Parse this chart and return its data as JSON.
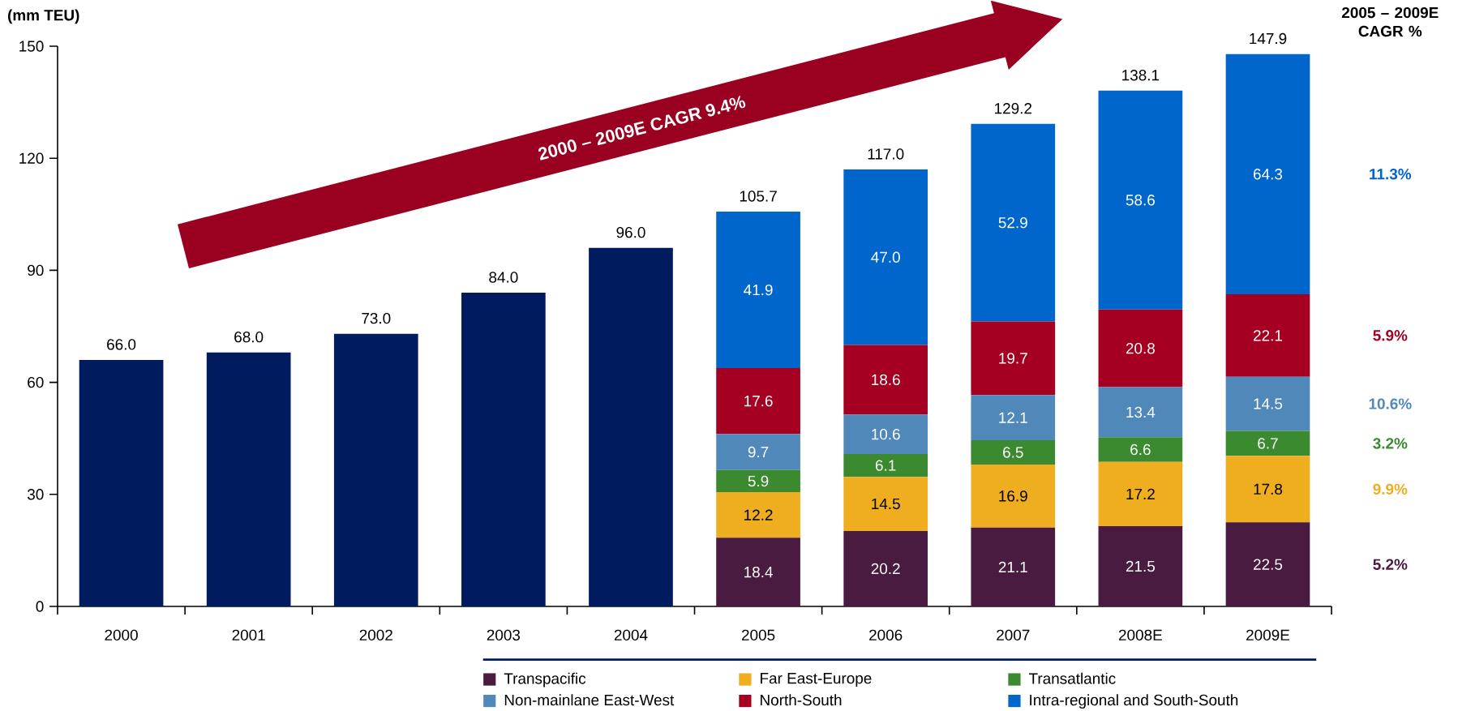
{
  "chart_data": {
    "type": "bar",
    "stacked": true,
    "ylabel": "(mm TEU)",
    "categories": [
      "2000",
      "2001",
      "2002",
      "2003",
      "2004",
      "2005",
      "2006",
      "2007",
      "2008E",
      "2009E"
    ],
    "series": [
      {
        "color": "#001b5e",
        "values": [
          66,
          68,
          73,
          84,
          96,
          null,
          null,
          null,
          null,
          null
        ]
      },
      {
        "name": "Transpacific",
        "color": "#4a1b40",
        "values": [
          null,
          null,
          null,
          null,
          null,
          18.4,
          20.2,
          21.1,
          21.5,
          22.5
        ],
        "value_labels": [
          null,
          null,
          null,
          null,
          null,
          "18.4",
          "20.2",
          "21.1",
          "21.5",
          "22.5"
        ]
      },
      {
        "name": "Far East-Europe",
        "color": "#efad20",
        "values": [
          null,
          null,
          null,
          null,
          null,
          12.2,
          14.5,
          16.9,
          17.2,
          17.8
        ],
        "value_labels": [
          null,
          null,
          null,
          null,
          null,
          "12.2",
          "14.5",
          "16.9",
          "17.2",
          "17.8"
        ]
      },
      {
        "name": "Transatlantic",
        "color": "#3c8a2f",
        "values": [
          null,
          null,
          null,
          null,
          null,
          5.9,
          6.1,
          6.5,
          6.6,
          6.7
        ],
        "value_labels": [
          null,
          null,
          null,
          null,
          null,
          "5.9",
          "6.1",
          "6.5",
          "6.6",
          "6.7"
        ]
      },
      {
        "name": "Non-mainlane East-West",
        "color": "#5088ba",
        "values": [
          null,
          null,
          null,
          null,
          null,
          9.7,
          10.6,
          12.1,
          13.4,
          14.5
        ],
        "value_labels": [
          null,
          null,
          null,
          null,
          null,
          "9.7",
          "10.6",
          "12.1",
          "13.4",
          "14.5"
        ]
      },
      {
        "name": "North-South",
        "color": "#a50021",
        "values": [
          null,
          null,
          null,
          null,
          null,
          17.6,
          18.6,
          19.7,
          20.8,
          22.1
        ],
        "value_labels": [
          null,
          null,
          null,
          null,
          null,
          "17.6",
          "18.6",
          "19.7",
          "20.8",
          "22.1"
        ]
      },
      {
        "name": "Intra-regional and South-South",
        "color": "#0066cc",
        "values": [
          null,
          null,
          null,
          null,
          null,
          41.9,
          47.0,
          52.9,
          58.6,
          64.3
        ],
        "value_labels": [
          null,
          null,
          null,
          null,
          null,
          "41.9",
          "47.0",
          "52.9",
          "58.6",
          "64.3"
        ]
      }
    ],
    "totals": [
      "66.0",
      "68.0",
      "73.0",
      "84.0",
      "96.0",
      "105.7",
      "117.0",
      "129.2",
      "138.1",
      "147.9"
    ],
    "ylim": [
      0,
      150
    ],
    "yticks": [
      0,
      30,
      60,
      90,
      120,
      150
    ],
    "legend": "bottom",
    "annotations": [
      "2000 – 2009E CAGR 9.4%",
      "2005 – 2009E CAGR %",
      "5.2%",
      "9.9%",
      "3.2%",
      "10.6%",
      "5.9%",
      "11.3%"
    ]
  }
}
